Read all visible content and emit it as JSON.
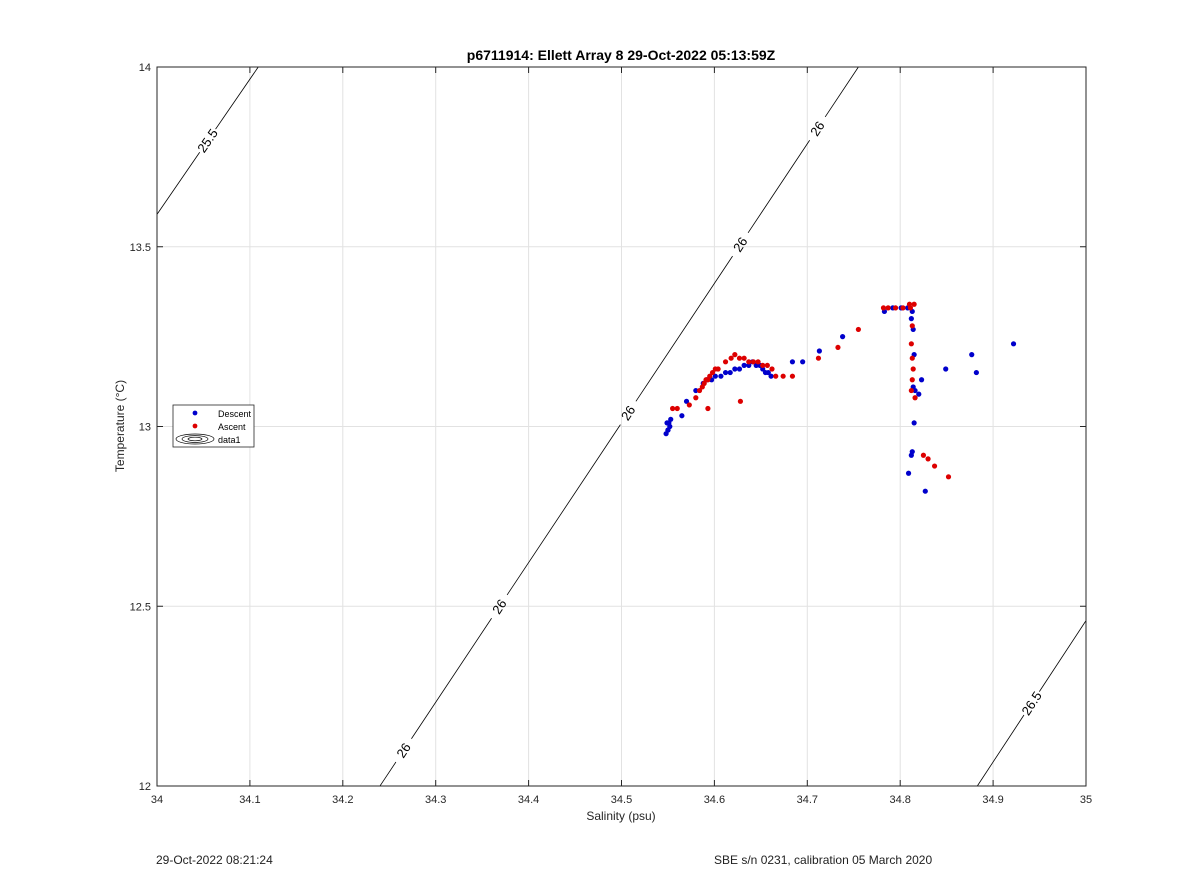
{
  "footer": {
    "timestamp": "29-Oct-2022 08:21:24",
    "calibration": "SBE s/n 0231, calibration 05 March 2020"
  },
  "chart_data": {
    "type": "scatter",
    "title": "p6711914: Ellett Array 8 29-Oct-2022 05:13:59Z",
    "xlabel": "Salinity (psu)",
    "ylabel": "Temperature (°C)",
    "xlim": [
      34,
      35
    ],
    "ylim": [
      12,
      14
    ],
    "xticks": [
      "34",
      "34.1",
      "34.2",
      "34.3",
      "34.4",
      "34.5",
      "34.6",
      "34.7",
      "34.8",
      "34.9",
      "35"
    ],
    "yticks": [
      "12",
      "12.5",
      "13",
      "13.5",
      "14"
    ],
    "grid": true,
    "legend_position": "left-middle",
    "legend": [
      "Descent",
      "Ascent",
      "data1"
    ],
    "colors": {
      "descent": "#0000cc",
      "ascent": "#dd0000",
      "contour": "#000000",
      "grid": "#e2e2e2"
    },
    "contours": [
      {
        "label": "25.5",
        "points": [
          [
            34.0,
            13.59
          ],
          [
            34.109,
            14.0
          ]
        ]
      },
      {
        "label": "26",
        "points": [
          [
            34.24,
            12.0
          ],
          [
            34.755,
            14.0
          ]
        ],
        "label_positions": [
          [
            34.265,
            12.1
          ],
          [
            34.368,
            12.5
          ],
          [
            34.5,
            13.05
          ],
          [
            34.62,
            13.52
          ],
          [
            34.745,
            13.77
          ]
        ]
      },
      {
        "label": "26.5",
        "points": [
          [
            34.883,
            12.0
          ],
          [
            35.0,
            12.46
          ]
        ]
      }
    ],
    "series": [
      {
        "name": "Descent",
        "x": [
          34.548,
          34.55,
          34.552,
          34.549,
          34.551,
          34.553,
          34.55,
          34.565,
          34.57,
          34.58,
          34.588,
          34.592,
          34.597,
          34.601,
          34.607,
          34.612,
          34.617,
          34.622,
          34.627,
          34.632,
          34.637,
          34.641,
          34.645,
          34.649,
          34.652,
          34.655,
          34.658,
          34.661,
          34.684,
          34.695,
          34.713,
          34.738,
          34.783,
          34.792,
          34.801,
          34.808,
          34.813,
          34.814,
          34.812,
          34.815,
          34.814,
          34.816,
          34.82,
          34.823,
          34.815,
          34.813,
          34.812,
          34.809,
          34.827,
          34.849,
          34.877,
          34.882,
          34.922
        ],
        "y": [
          12.98,
          12.99,
          13.0,
          13.01,
          13.01,
          13.02,
          12.99,
          13.03,
          13.07,
          13.1,
          13.12,
          13.13,
          13.13,
          13.14,
          13.14,
          13.15,
          13.15,
          13.16,
          13.16,
          13.17,
          13.17,
          13.18,
          13.17,
          13.17,
          13.16,
          13.15,
          13.15,
          13.14,
          13.18,
          13.18,
          13.21,
          13.25,
          13.32,
          13.33,
          13.33,
          13.33,
          13.32,
          13.27,
          13.3,
          13.2,
          13.11,
          13.1,
          13.09,
          13.13,
          13.01,
          12.93,
          12.92,
          12.87,
          12.82,
          13.16,
          13.2,
          13.15,
          13.23
        ]
      },
      {
        "name": "Ascent",
        "x": [
          34.555,
          34.56,
          34.573,
          34.58,
          34.584,
          34.587,
          34.589,
          34.591,
          34.593,
          34.595,
          34.598,
          34.601,
          34.604,
          34.612,
          34.618,
          34.622,
          34.627,
          34.632,
          34.637,
          34.642,
          34.647,
          34.652,
          34.657,
          34.662,
          34.666,
          34.674,
          34.684,
          34.712,
          34.733,
          34.755,
          34.782,
          34.787,
          34.795,
          34.803,
          34.81,
          34.815,
          34.811,
          34.813,
          34.812,
          34.813,
          34.814,
          34.813,
          34.812,
          34.816,
          34.825,
          34.83,
          34.837,
          34.852,
          34.628,
          34.593
        ],
        "y": [
          13.05,
          13.05,
          13.06,
          13.08,
          13.1,
          13.11,
          13.12,
          13.13,
          13.13,
          13.14,
          13.15,
          13.16,
          13.16,
          13.18,
          13.19,
          13.2,
          13.19,
          13.19,
          13.18,
          13.18,
          13.18,
          13.17,
          13.17,
          13.16,
          13.14,
          13.14,
          13.14,
          13.19,
          13.22,
          13.27,
          13.33,
          13.33,
          13.33,
          13.33,
          13.34,
          13.34,
          13.33,
          13.28,
          13.23,
          13.19,
          13.16,
          13.13,
          13.1,
          13.08,
          12.92,
          12.91,
          12.89,
          12.86,
          13.07,
          13.05
        ]
      }
    ]
  }
}
